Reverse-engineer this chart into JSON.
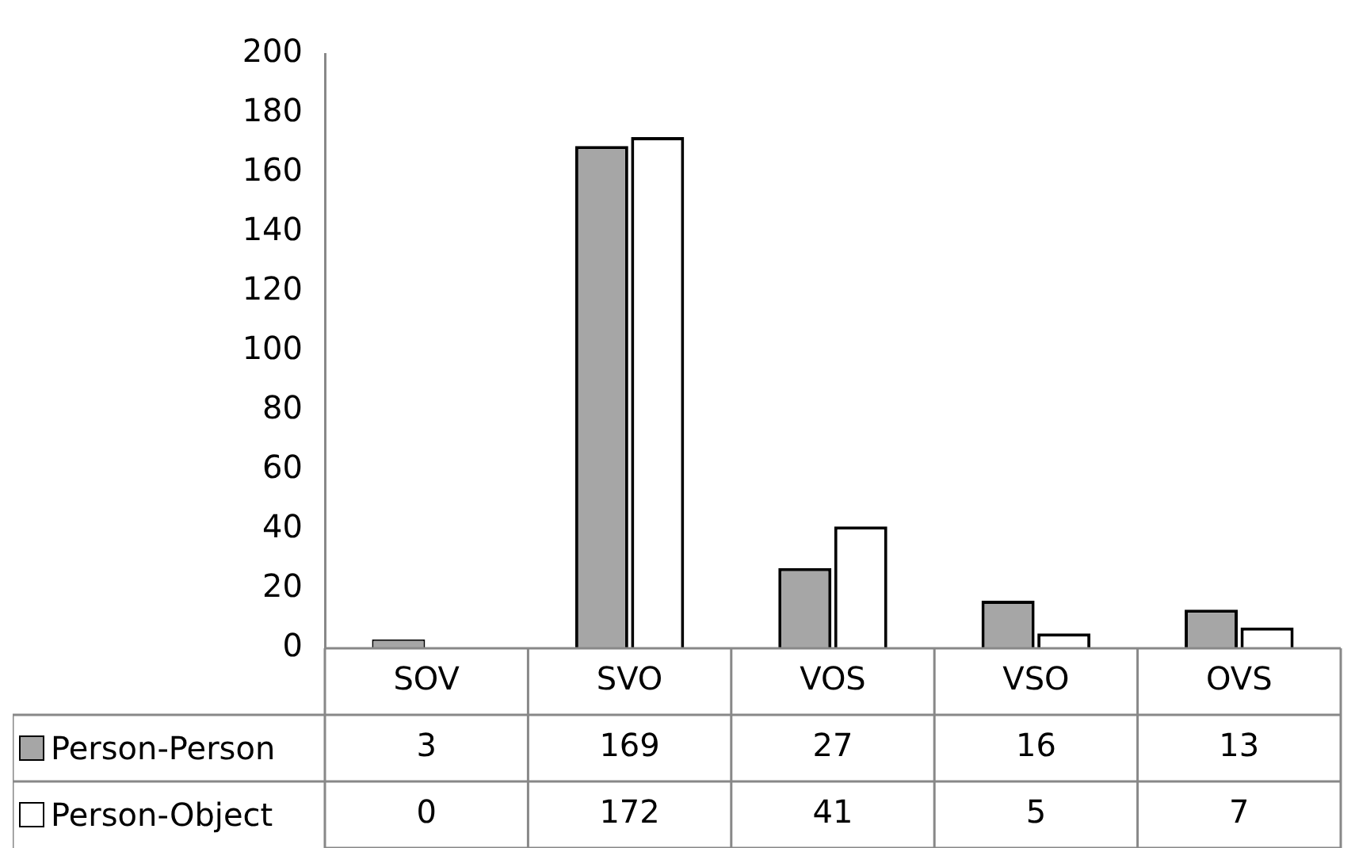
{
  "chart_data": {
    "type": "bar",
    "categories": [
      "SOV",
      "SVO",
      "VOS",
      "VSO",
      "OVS"
    ],
    "series": [
      {
        "name": "Person-Person",
        "color": "#a6a6a6",
        "values": [
          3,
          169,
          27,
          16,
          13
        ]
      },
      {
        "name": "Person-Object",
        "color": "#ffffff",
        "values": [
          0,
          172,
          41,
          5,
          7
        ]
      }
    ],
    "ylim": [
      0,
      200
    ],
    "yticks": [
      0,
      20,
      40,
      60,
      80,
      100,
      120,
      140,
      160,
      180,
      200
    ],
    "grid": false,
    "legend": "bottom",
    "data_labels": true
  }
}
